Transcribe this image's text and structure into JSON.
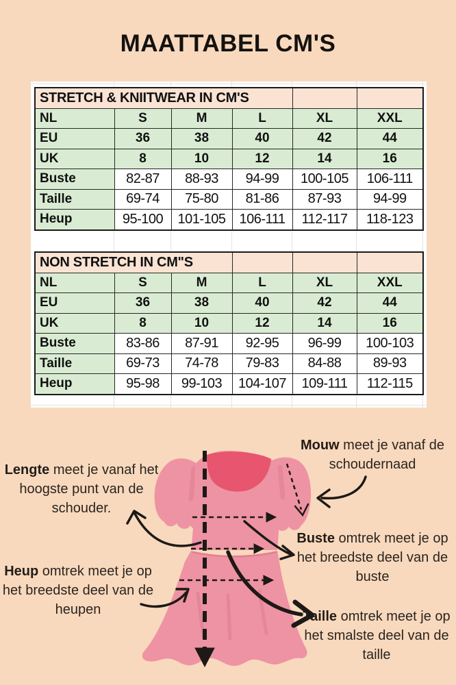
{
  "page": {
    "title": "MAATTABEL CM'S"
  },
  "tables": [
    {
      "header": "STRETCH & KNIITWEAR IN CM'S",
      "header_span": 4,
      "size_rows": [
        {
          "label": "NL",
          "values": [
            "S",
            "M",
            "L",
            "XL",
            "XXL"
          ]
        },
        {
          "label": "EU",
          "values": [
            "36",
            "38",
            "40",
            "42",
            "44"
          ]
        },
        {
          "label": "UK",
          "values": [
            "8",
            "10",
            "12",
            "14",
            "16"
          ]
        }
      ],
      "measure_rows": [
        {
          "label": "Buste",
          "values": [
            "82-87",
            "88-93",
            "94-99",
            "100-105",
            "106-111"
          ]
        },
        {
          "label": "Taille",
          "values": [
            "69-74",
            "75-80",
            "81-86",
            "87-93",
            "94-99"
          ]
        },
        {
          "label": "Heup",
          "values": [
            "95-100",
            "101-105",
            "106-111",
            "112-117",
            "118-123"
          ]
        }
      ]
    },
    {
      "header": "NON STRETCH IN CM\"S",
      "header_span": 3,
      "size_rows": [
        {
          "label": "NL",
          "values": [
            "S",
            "M",
            "L",
            "XL",
            "XXL"
          ]
        },
        {
          "label": "EU",
          "values": [
            "36",
            "38",
            "40",
            "42",
            "44"
          ]
        },
        {
          "label": "UK",
          "values": [
            "8",
            "10",
            "12",
            "14",
            "16"
          ]
        }
      ],
      "measure_rows": [
        {
          "label": "Buste",
          "values": [
            "83-86",
            "87-91",
            "92-95",
            "96-99",
            "100-103"
          ]
        },
        {
          "label": "Taille",
          "values": [
            "69-73",
            "74-78",
            "79-83",
            "84-88",
            "89-93"
          ]
        },
        {
          "label": "Heup",
          "values": [
            "95-98",
            "99-103",
            "104-107",
            "109-111",
            "112-115"
          ]
        }
      ]
    }
  ],
  "annotations": {
    "lengte": {
      "keyword": "Lengte",
      "text": " meet je vanaf het hoogste punt van de schouder."
    },
    "mouw": {
      "keyword": "Mouw",
      "text": " meet je vanaf de schoudernaad"
    },
    "buste": {
      "keyword": "Buste",
      "text": " omtrek meet je op het breedste deel van de buste"
    },
    "heup": {
      "keyword": "Heup",
      "text": " omtrek meet je op het breedste deel van de heupen"
    },
    "taille": {
      "keyword": "Taille",
      "text": " omtrek meet je op het smalste deel van de taille"
    }
  },
  "colors": {
    "background": "#f8d9bd",
    "sheet": "#ffffff",
    "table_header_bg": "#fbe3d3",
    "table_green_bg": "#d9ecd3",
    "table_border": "#262626",
    "dress_pink": "#ee93a3",
    "dress_dark_pink": "#e7566e",
    "dress_shade_pink": "#dd7a8e",
    "ink": "#221c18"
  }
}
